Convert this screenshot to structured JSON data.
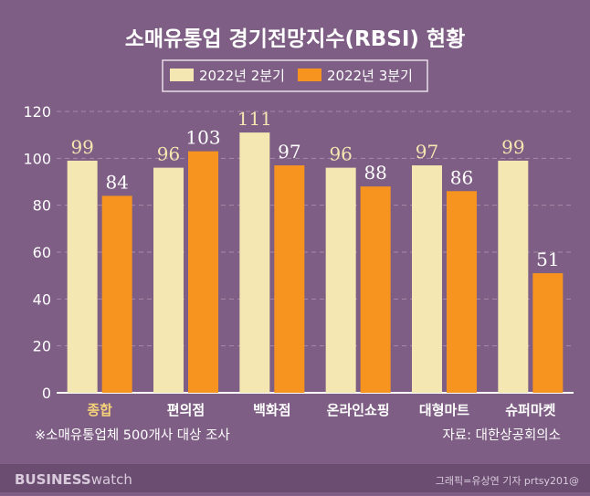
{
  "chart_data": {
    "type": "bar",
    "title": "소매유통업 경기전망지수(RBSI) 현황",
    "categories": [
      "종합",
      "편의점",
      "백화점",
      "온라인쇼핑",
      "대형마트",
      "슈퍼마켓"
    ],
    "series": [
      {
        "name": "2022년 2분기",
        "values": [
          99,
          96,
          111,
          96,
          97,
          99
        ],
        "color": "#f4e7b2"
      },
      {
        "name": "2022년 3분기",
        "values": [
          84,
          103,
          97,
          88,
          86,
          51
        ],
        "color": "#f7931f"
      }
    ],
    "yticks": [
      "0",
      "20",
      "40",
      "60",
      "80",
      "100",
      "120"
    ],
    "ylim": [
      0,
      120
    ],
    "grid": true,
    "legend_position": "top-center",
    "highlight_category_color": "#f5d27a",
    "note": "※소매유통업체 500개사 대상 조사",
    "source": "자료: 대한상공회의소"
  },
  "footer": {
    "brand_bold": "BUSINESS",
    "brand_light": "watch",
    "credit": "그래픽=유상연 기자 prtsy201@"
  }
}
